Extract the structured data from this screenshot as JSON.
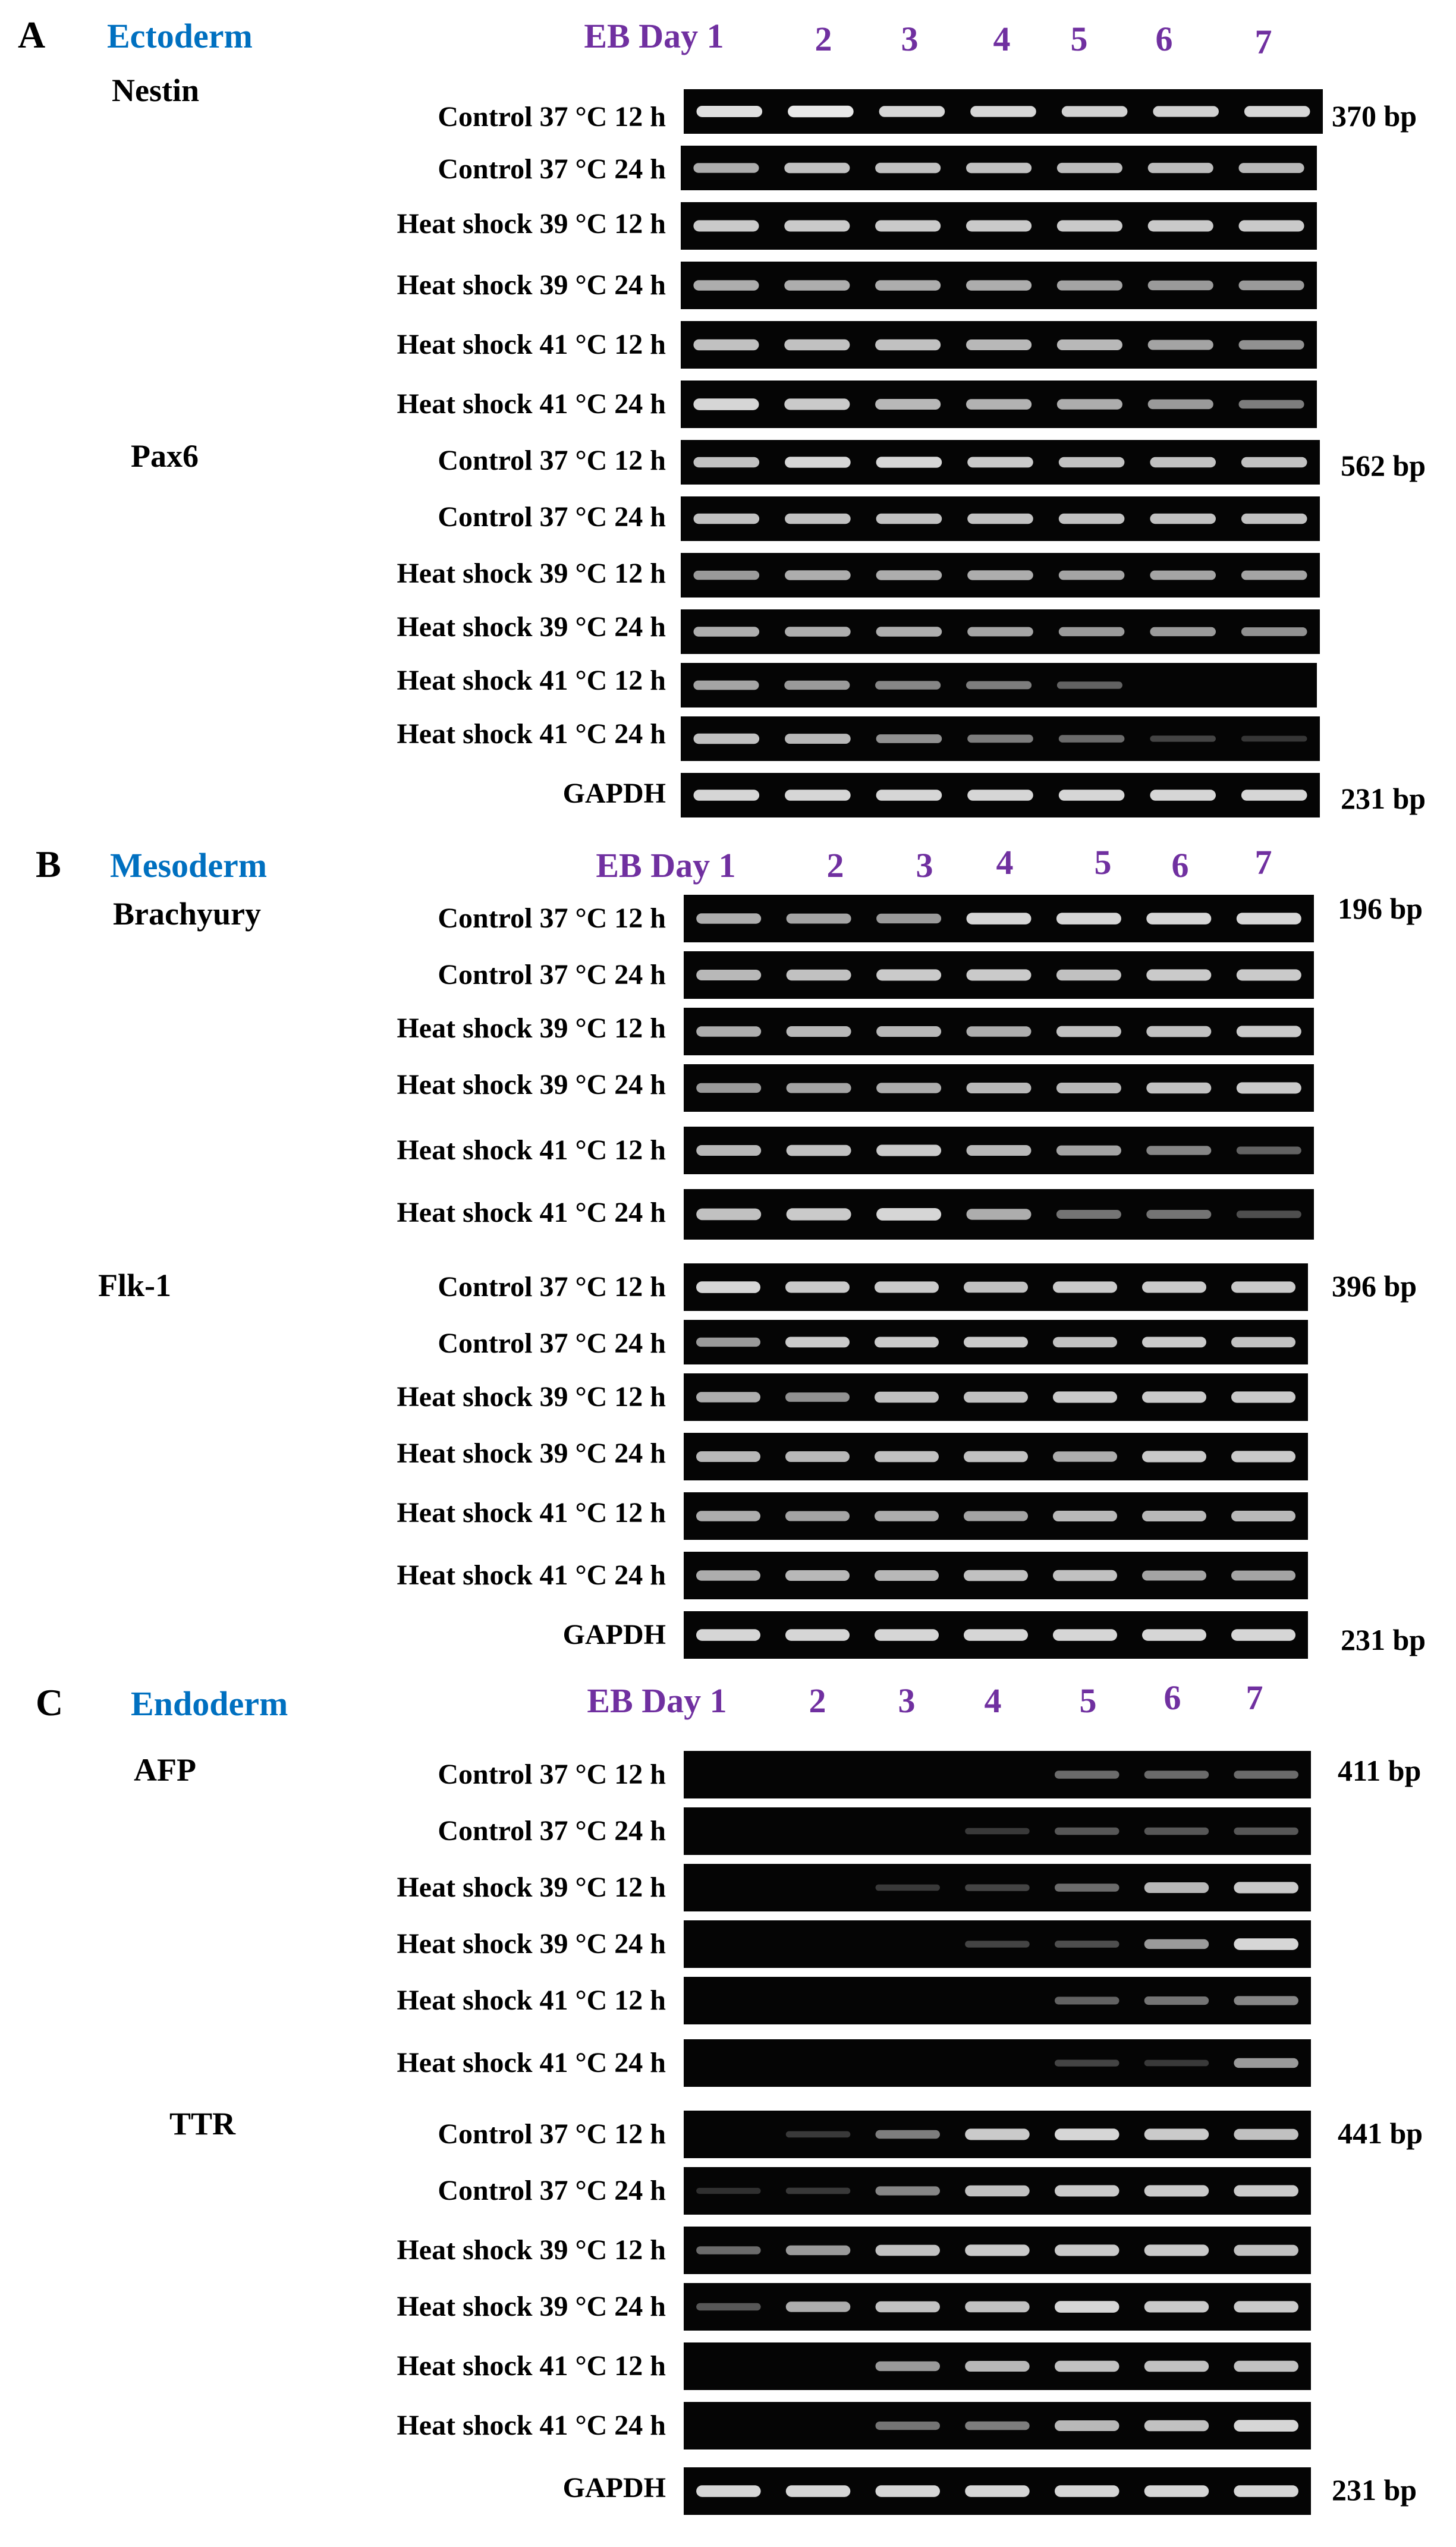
{
  "colors": {
    "panel_title": "#0070c0",
    "lane_labels": "#7030a0",
    "gel_background": "#050505",
    "band": "#e8e8e8",
    "text": "#000000"
  },
  "panels": [
    {
      "letter": "A",
      "germ_layer": "Ectoderm",
      "lanes": [
        "EB Day 1",
        "2",
        "3",
        "4",
        "5",
        "6",
        "7"
      ],
      "genes": [
        {
          "name": "Nestin",
          "size": "370 bp",
          "rows": [
            {
              "condition": "Control 37 °C 12 h",
              "bands": [
                0.95,
                1.0,
                0.9,
                0.9,
                0.88,
                0.88,
                0.9
              ]
            },
            {
              "condition": "Control 37 °C 24 h",
              "bands": [
                0.7,
                0.8,
                0.8,
                0.8,
                0.78,
                0.78,
                0.75
              ]
            },
            {
              "condition": "Heat shock 39 °C 12 h",
              "bands": [
                0.85,
                0.85,
                0.85,
                0.85,
                0.85,
                0.85,
                0.85
              ]
            },
            {
              "condition": "Heat shock 39 °C 24 h",
              "bands": [
                0.7,
                0.7,
                0.7,
                0.7,
                0.65,
                0.6,
                0.6
              ]
            },
            {
              "condition": "Heat shock 41 °C 12 h",
              "bands": [
                0.8,
                0.8,
                0.8,
                0.75,
                0.75,
                0.65,
                0.55
              ]
            },
            {
              "condition": "Heat shock 41 °C 24 h",
              "bands": [
                0.9,
                0.85,
                0.75,
                0.72,
                0.7,
                0.6,
                0.45
              ]
            }
          ]
        },
        {
          "name": "Pax6",
          "size": "562 bp",
          "rows": [
            {
              "condition": "Control 37 °C 12 h",
              "bands": [
                0.8,
                0.9,
                0.9,
                0.85,
                0.8,
                0.8,
                0.8
              ]
            },
            {
              "condition": "Control 37 °C 24 h",
              "bands": [
                0.8,
                0.8,
                0.8,
                0.8,
                0.8,
                0.8,
                0.8
              ]
            },
            {
              "condition": "Heat shock 39 °C 12 h",
              "bands": [
                0.6,
                0.7,
                0.7,
                0.7,
                0.65,
                0.65,
                0.65
              ]
            },
            {
              "condition": "Heat shock 39 °C 24 h",
              "bands": [
                0.7,
                0.7,
                0.7,
                0.65,
                0.6,
                0.6,
                0.55
              ]
            },
            {
              "condition": "Heat shock 41 °C 12 h",
              "bands": [
                0.65,
                0.6,
                0.5,
                0.45,
                0.3,
                0,
                0
              ]
            },
            {
              "condition": "Heat shock 41 °C 24 h",
              "bands": [
                0.8,
                0.75,
                0.55,
                0.45,
                0.35,
                0.15,
                0.08
              ]
            }
          ]
        }
      ],
      "control": {
        "name": "GAPDH",
        "size": "231 bp",
        "bands": [
          0.9,
          0.9,
          0.9,
          0.9,
          0.9,
          0.9,
          0.9
        ]
      }
    },
    {
      "letter": "B",
      "germ_layer": "Mesoderm",
      "lanes": [
        "EB Day 1",
        "2",
        "3",
        "4",
        "5",
        "6",
        "7"
      ],
      "genes": [
        {
          "name": "Brachyury",
          "size": "196 bp",
          "rows": [
            {
              "condition": "Control 37 °C 12 h",
              "bands": [
                0.7,
                0.65,
                0.6,
                0.9,
                0.9,
                0.9,
                0.9
              ]
            },
            {
              "condition": "Control 37 °C 24 h",
              "bands": [
                0.75,
                0.8,
                0.85,
                0.85,
                0.8,
                0.85,
                0.85
              ]
            },
            {
              "condition": "Heat shock 39 °C 12 h",
              "bands": [
                0.7,
                0.75,
                0.75,
                0.7,
                0.8,
                0.8,
                0.85
              ]
            },
            {
              "condition": "Heat shock 39 °C 24 h",
              "bands": [
                0.6,
                0.65,
                0.7,
                0.75,
                0.75,
                0.8,
                0.85
              ]
            },
            {
              "condition": "Heat shock 41 °C 12 h",
              "bands": [
                0.75,
                0.8,
                0.85,
                0.75,
                0.65,
                0.5,
                0.3
              ]
            },
            {
              "condition": "Heat shock 41 °C 24 h",
              "bands": [
                0.8,
                0.85,
                0.9,
                0.7,
                0.4,
                0.4,
                0.2
              ]
            }
          ]
        },
        {
          "name": "Flk-1",
          "size": "396 bp",
          "rows": [
            {
              "condition": "Control 37 °C 12 h",
              "bands": [
                0.9,
                0.85,
                0.85,
                0.8,
                0.85,
                0.85,
                0.85
              ]
            },
            {
              "condition": "Control 37 °C 24 h",
              "bands": [
                0.6,
                0.85,
                0.85,
                0.85,
                0.8,
                0.85,
                0.8
              ]
            },
            {
              "condition": "Heat shock 39 °C 12 h",
              "bands": [
                0.7,
                0.55,
                0.8,
                0.8,
                0.85,
                0.85,
                0.85
              ]
            },
            {
              "condition": "Heat shock 39 °C 24 h",
              "bands": [
                0.75,
                0.75,
                0.8,
                0.8,
                0.7,
                0.85,
                0.85
              ]
            },
            {
              "condition": "Heat shock 41 °C 12 h",
              "bands": [
                0.7,
                0.65,
                0.7,
                0.65,
                0.75,
                0.75,
                0.75
              ]
            },
            {
              "condition": "Heat shock 41 °C 24 h",
              "bands": [
                0.7,
                0.75,
                0.75,
                0.8,
                0.8,
                0.65,
                0.65
              ]
            }
          ]
        }
      ],
      "control": {
        "name": "GAPDH",
        "size": "231 bp",
        "bands": [
          0.9,
          0.9,
          0.9,
          0.9,
          0.9,
          0.9,
          0.9
        ]
      }
    },
    {
      "letter": "C",
      "germ_layer": "Endoderm",
      "lanes": [
        "EB Day 1",
        "2",
        "3",
        "4",
        "5",
        "6",
        "7"
      ],
      "genes": [
        {
          "name": "AFP",
          "size": "411 bp",
          "rows": [
            {
              "condition": "Control 37 °C 12 h",
              "bands": [
                0,
                0,
                0,
                0,
                0.35,
                0.35,
                0.35
              ]
            },
            {
              "condition": "Control 37 °C 24 h",
              "bands": [
                0,
                0,
                0,
                0.1,
                0.25,
                0.25,
                0.25
              ]
            },
            {
              "condition": "Heat shock 39 °C 12 h",
              "bands": [
                0,
                0,
                0.1,
                0.15,
                0.35,
                0.75,
                0.85
              ]
            },
            {
              "condition": "Heat shock 39 °C 24 h",
              "bands": [
                0,
                0,
                0,
                0.15,
                0.2,
                0.6,
                0.9
              ]
            },
            {
              "condition": "Heat shock 41 °C 12 h",
              "bands": [
                0,
                0,
                0,
                0,
                0.3,
                0.4,
                0.5
              ]
            },
            {
              "condition": "Heat shock 41 °C 24 h",
              "bands": [
                0,
                0,
                0,
                0,
                0.15,
                0.1,
                0.6
              ]
            }
          ]
        },
        {
          "name": "TTR",
          "size": "441 bp",
          "rows": [
            {
              "condition": "Control 37 °C 12 h",
              "bands": [
                0,
                0.1,
                0.45,
                0.85,
                0.9,
                0.85,
                0.8
              ]
            },
            {
              "condition": "Control 37 °C 24 h",
              "bands": [
                0.05,
                0.1,
                0.5,
                0.8,
                0.85,
                0.85,
                0.85
              ]
            },
            {
              "condition": "Heat shock 39 °C 12 h",
              "bands": [
                0.35,
                0.6,
                0.8,
                0.85,
                0.85,
                0.85,
                0.8
              ]
            },
            {
              "condition": "Heat shock 39 °C 24 h",
              "bands": [
                0.25,
                0.7,
                0.8,
                0.8,
                0.9,
                0.85,
                0.85
              ]
            },
            {
              "condition": "Heat shock 41 °C 12 h",
              "bands": [
                0,
                0,
                0.6,
                0.75,
                0.8,
                0.8,
                0.8
              ]
            },
            {
              "condition": "Heat shock 41 °C 24 h",
              "bands": [
                0,
                0,
                0.4,
                0.45,
                0.75,
                0.8,
                0.9
              ]
            }
          ]
        }
      ],
      "control": {
        "name": "GAPDH",
        "size": "231 bp",
        "bands": [
          0.9,
          0.9,
          0.9,
          0.9,
          0.9,
          0.9,
          0.9
        ]
      }
    }
  ]
}
